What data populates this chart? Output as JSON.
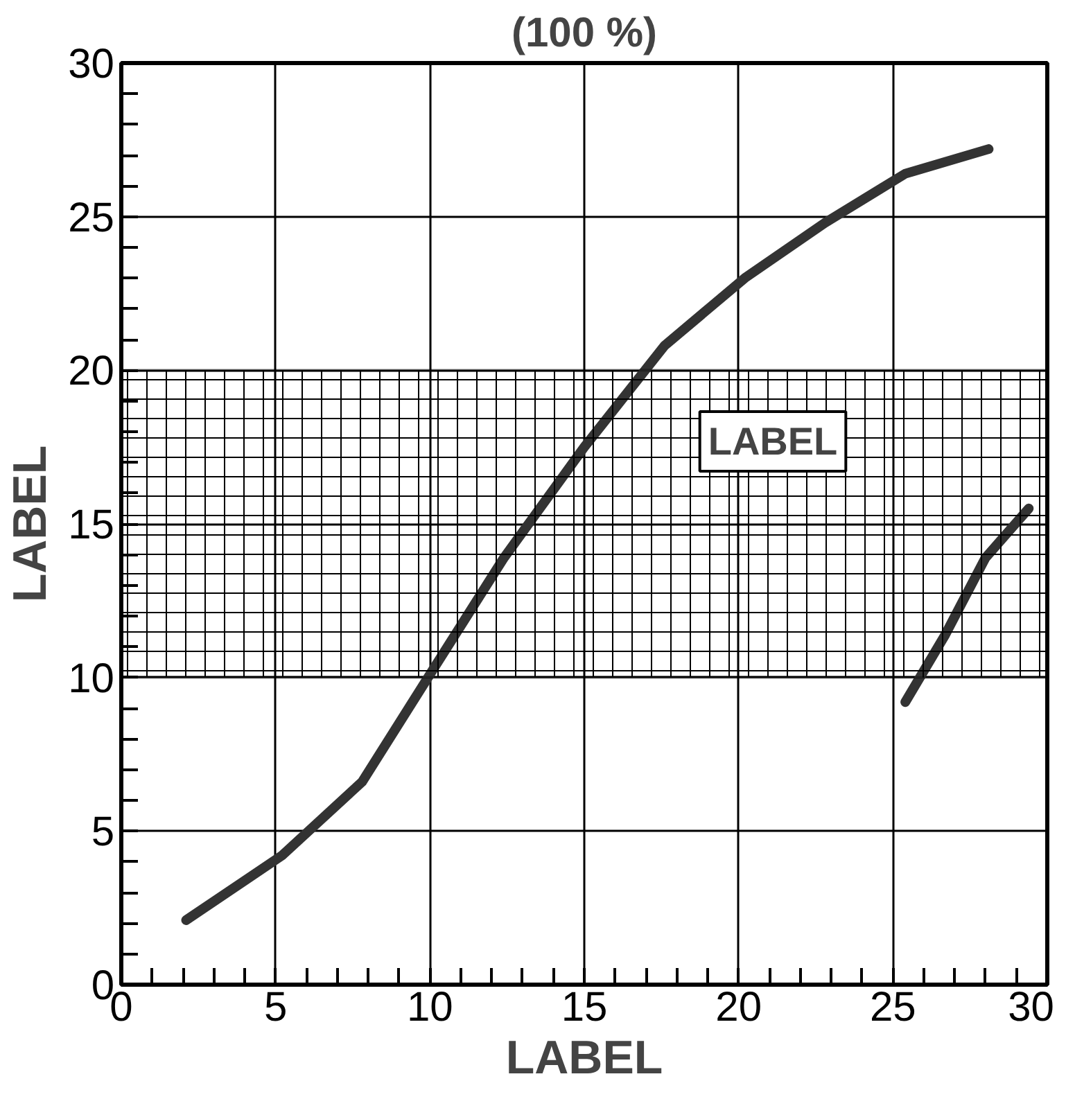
{
  "chart_data": {
    "type": "line",
    "title": "(100 %)",
    "xlabel": "LABEL",
    "ylabel": "LABEL",
    "xlim": [
      0,
      30
    ],
    "ylim": [
      0,
      30
    ],
    "xticks": [
      0,
      {
        "value": 1,
        "label": null
      },
      {
        "value": 2,
        "label": null
      },
      {
        "value": 3,
        "label": null
      },
      {
        "value": 4,
        "label": null
      },
      5,
      {
        "value": 6,
        "label": null
      },
      {
        "value": 7,
        "label": null
      },
      {
        "value": 8,
        "label": null
      },
      {
        "value": 9,
        "label": null
      },
      10,
      {
        "value": 11,
        "label": null
      },
      {
        "value": 12,
        "label": null
      },
      {
        "value": 13,
        "label": null
      },
      {
        "value": 14,
        "label": null
      },
      15,
      {
        "value": 16,
        "label": null
      },
      {
        "value": 17,
        "label": null
      },
      {
        "value": 18,
        "label": null
      },
      {
        "value": 19,
        "label": null
      },
      20,
      {
        "value": 21,
        "label": null
      },
      {
        "value": 22,
        "label": null
      },
      {
        "value": 23,
        "label": null
      },
      {
        "value": 24,
        "label": null
      },
      25,
      {
        "value": 26,
        "label": null
      },
      {
        "value": 27,
        "label": null
      },
      {
        "value": 28,
        "label": null
      },
      {
        "value": 29,
        "label": null
      },
      30
    ],
    "yticks": [
      0,
      {
        "value": 1,
        "label": null
      },
      {
        "value": 2,
        "label": null
      },
      {
        "value": 3,
        "label": null
      },
      {
        "value": 4,
        "label": null
      },
      5,
      {
        "value": 6,
        "label": null
      },
      {
        "value": 7,
        "label": null
      },
      {
        "value": 8,
        "label": null
      },
      {
        "value": 9,
        "label": null
      },
      10,
      {
        "value": 11,
        "label": null
      },
      {
        "value": 12,
        "label": null
      },
      {
        "value": 13,
        "label": null
      },
      {
        "value": 14,
        "label": null
      },
      15,
      {
        "value": 16,
        "label": null
      },
      {
        "value": 17,
        "label": null
      },
      {
        "value": 18,
        "label": null
      },
      {
        "value": 19,
        "label": null
      },
      20,
      {
        "value": 21,
        "label": null
      },
      {
        "value": 22,
        "label": null
      },
      {
        "value": 23,
        "label": null
      },
      {
        "value": 24,
        "label": null
      },
      25,
      {
        "value": 26,
        "label": null
      },
      {
        "value": 27,
        "label": null
      },
      {
        "value": 28,
        "label": null
      },
      {
        "value": 29,
        "label": null
      },
      30
    ],
    "grid": true,
    "line_style": "solid",
    "series": [
      {
        "color": "#333333",
        "x": [
          2.1,
          5.2,
          7.8,
          10,
          12.4,
          15,
          17.6,
          20.2,
          22.8,
          25.4,
          28.1
        ],
        "values": [
          2.1,
          4.2,
          6.6,
          10.1,
          13.9,
          17.5,
          20.8,
          23,
          24.8,
          26.4,
          27.2
        ]
      },
      {
        "color": "#333333",
        "x": [
          25.4,
          26.7,
          28,
          29.4
        ],
        "values": [
          9.2,
          11.4,
          13.9,
          15.5
        ]
      }
    ],
    "bands": [
      {
        "axis": "y",
        "from": 10,
        "to": 20,
        "color": "#000000"
      }
    ],
    "annotations": [
      "LABEL"
    ]
  }
}
